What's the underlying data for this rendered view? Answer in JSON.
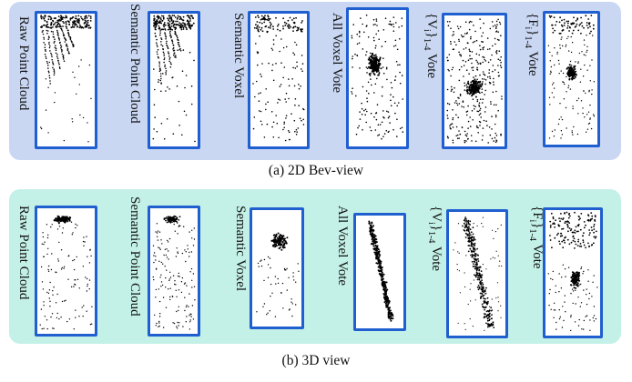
{
  "panels": [
    {
      "caption": "(a) 2D Bev-view",
      "items": [
        {
          "label": "Raw Point Cloud",
          "pattern": "raw-bev"
        },
        {
          "label": "Semantic Point Cloud",
          "pattern": "sem-bev"
        },
        {
          "label": "Semantic Voxel",
          "pattern": "voxel-bev"
        },
        {
          "label": "All Voxel Vote",
          "pattern": "allvote-bev"
        },
        {
          "label_parts": [
            "{V",
            "i",
            "}",
            "1-4",
            " Vote"
          ],
          "pattern": "vvote-bev"
        },
        {
          "label_parts": [
            "{F",
            "i",
            "}",
            "1-4",
            " Vote"
          ],
          "pattern": "fvote-bev"
        }
      ]
    },
    {
      "caption": "(b) 3D view",
      "items": [
        {
          "label": "Raw Point Cloud",
          "pattern": "raw-3d"
        },
        {
          "label": "Semantic Point Cloud",
          "pattern": "sem-3d"
        },
        {
          "label": "Semantic Voxel",
          "pattern": "voxel-3d"
        },
        {
          "label": "All Voxel Vote",
          "pattern": "allvote-3d"
        },
        {
          "label_parts": [
            "{V",
            "i",
            "}",
            "1-4",
            " Vote"
          ],
          "pattern": "vvote-3d"
        },
        {
          "label_parts": [
            "{F",
            "i",
            "}",
            "1-4",
            " Vote"
          ],
          "pattern": "fvote-3d"
        }
      ]
    }
  ],
  "colors": {
    "panel_a": "#c9d7f3",
    "panel_b": "#c4f1e7",
    "frame_border": "#1f5fd0",
    "points": "#000000"
  }
}
